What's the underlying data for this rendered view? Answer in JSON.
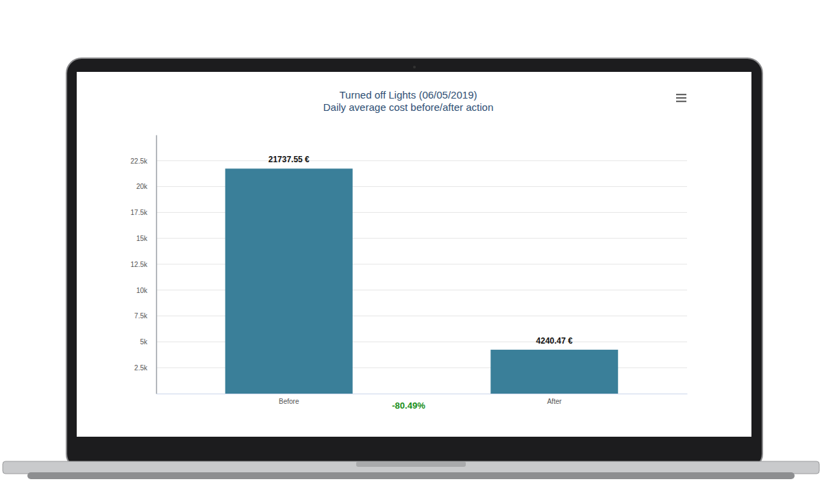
{
  "chart_data": {
    "type": "bar",
    "title": "Turned off Lights (06/05/2019)",
    "subtitle": "Daily average cost before/after action",
    "categories": [
      "Before",
      "After"
    ],
    "values": [
      21737.55,
      4240.47
    ],
    "value_labels": [
      "21737.55 €",
      "4240.47 €"
    ],
    "data_labels": true,
    "color": "#3a7f99",
    "annotation": "-80.49%",
    "ylim": [
      0,
      25000
    ],
    "yticks": [
      {
        "value": 2500,
        "label": "2.5k"
      },
      {
        "value": 5000,
        "label": "5k"
      },
      {
        "value": 7500,
        "label": "7.5k"
      },
      {
        "value": 10000,
        "label": "10k"
      },
      {
        "value": 12500,
        "label": "12.5k"
      },
      {
        "value": 15000,
        "label": "15k"
      },
      {
        "value": 17500,
        "label": "17.5k"
      },
      {
        "value": 20000,
        "label": "20k"
      },
      {
        "value": 22500,
        "label": "22.5k"
      }
    ],
    "grid": true
  }
}
